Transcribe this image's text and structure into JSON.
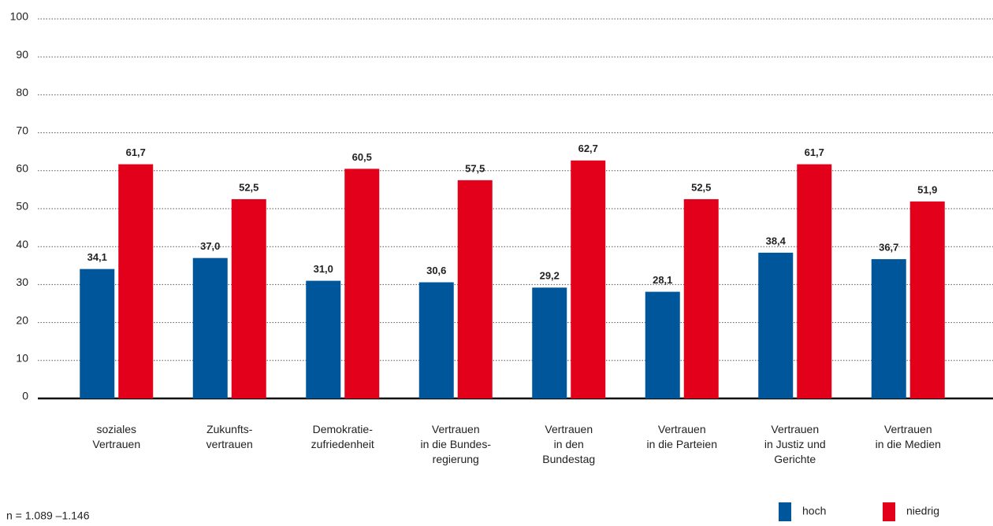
{
  "chart_data": {
    "type": "bar",
    "categories": [
      "soziales\nVertrauen",
      "Zukunfts-\nvertrauen",
      "Demokratie-\nzufriedenheit",
      "Vertrauen\nin die Bundes-\nregierung",
      "Vertrauen\nin den\nBundestag",
      "Vertrauen\nin die Parteien",
      "Vertrauen\nin Justiz und\nGerichte",
      "Vertrauen\nin die Medien"
    ],
    "series": [
      {
        "name": "hoch",
        "color": "#00569b",
        "values": [
          34.1,
          37.0,
          31.0,
          30.6,
          29.2,
          28.1,
          38.4,
          36.7
        ],
        "value_labels": [
          "34,1",
          "37,0",
          "31,0",
          "30,6",
          "29,2",
          "28,1",
          "38,4",
          "36,7"
        ]
      },
      {
        "name": "niedrig",
        "color": "#e2001a",
        "values": [
          61.7,
          52.5,
          60.5,
          57.5,
          62.7,
          52.5,
          61.7,
          51.9
        ],
        "value_labels": [
          "61,7",
          "52,5",
          "60,5",
          "57,5",
          "62,7",
          "52,5",
          "61,7",
          "51,9"
        ]
      }
    ],
    "ylim": [
      0,
      100
    ],
    "yticks": [
      0,
      10,
      20,
      30,
      40,
      50,
      60,
      70,
      80,
      90,
      100
    ],
    "grid": true,
    "note": "n = 1.089 –1.146",
    "legend": "bottom-right"
  }
}
